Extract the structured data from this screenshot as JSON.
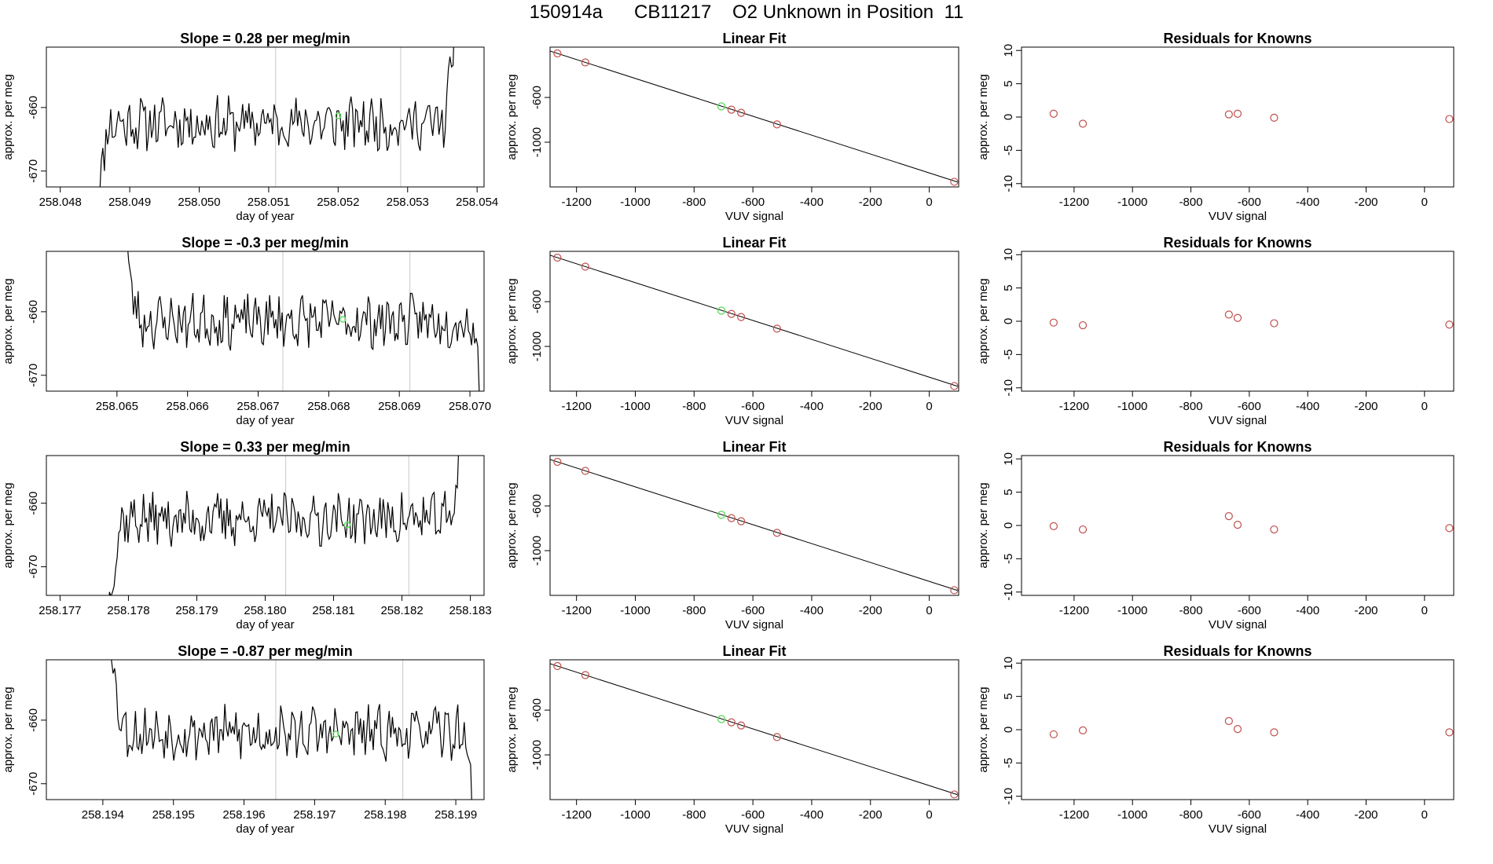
{
  "page": {
    "title": "150914a      CB11217    O2 Unknown in Position  11"
  },
  "style": {
    "trace_color": "#000000",
    "fit_color": "#000000",
    "known_point_color": "#c0504d",
    "unknown_point_color": "#66dd66",
    "guide_line_color": "#c8c8c8"
  },
  "chart_data": [
    {
      "type": "line",
      "title": "Slope =  0.28  per meg/min",
      "xlabel": "day of year",
      "ylabel": "approx. per meg",
      "xlim": [
        258.0478,
        258.0541
      ],
      "ylim": [
        -672.5,
        -650.5
      ],
      "xticks": [
        258.048,
        258.049,
        258.05,
        258.051,
        258.052,
        258.053,
        258.054
      ],
      "xtick_labels": [
        "258.048",
        "258.049",
        "258.050",
        "258.051",
        "258.052",
        "258.053",
        "258.054"
      ],
      "yticks": [
        -660,
        -670
      ],
      "ytick_labels": [
        "-660",
        "-670"
      ],
      "vlines": [
        258.0511,
        258.0529
      ],
      "start": 258.0485,
      "end": 258.0537,
      "level": -662.5,
      "lead": "up",
      "trail": "up",
      "unknown": {
        "x": 258.052,
        "y": -661.3
      },
      "seed": 11
    },
    {
      "type": "line",
      "title": "Slope =  -0.3  per meg/min",
      "xlabel": "day of year",
      "ylabel": "approx. per meg",
      "xlim": [
        258.064,
        258.0702
      ],
      "ylim": [
        -672.5,
        -650.5
      ],
      "xticks": [
        258.065,
        258.066,
        258.067,
        258.068,
        258.069,
        258.07
      ],
      "xtick_labels": [
        "258.065",
        "258.066",
        "258.067",
        "258.068",
        "258.069",
        "258.070"
      ],
      "yticks": [
        -660,
        -670
      ],
      "ytick_labels": [
        "-660",
        "-670"
      ],
      "vlines": [
        258.06735,
        258.06915
      ],
      "start": 258.0651,
      "end": 258.0702,
      "level": -661.5,
      "lead": "down",
      "trail": "down",
      "unknown": {
        "x": 258.0682,
        "y": -661.2
      },
      "seed": 23
    },
    {
      "type": "line",
      "title": "Slope =  0.33  per meg/min",
      "xlabel": "day of year",
      "ylabel": "approx. per meg",
      "xlim": [
        258.1768,
        258.1832
      ],
      "ylim": [
        -674.5,
        -652.5
      ],
      "xticks": [
        258.177,
        258.178,
        258.179,
        258.18,
        258.181,
        258.182,
        258.183
      ],
      "xtick_labels": [
        "258.177",
        "258.178",
        "258.179",
        "258.180",
        "258.181",
        "258.182",
        "258.183"
      ],
      "yticks": [
        -660,
        -670
      ],
      "ytick_labels": [
        "-660",
        "-670"
      ],
      "vlines": [
        258.1803,
        258.1821
      ],
      "start": 258.1777,
      "end": 258.1829,
      "level": -662.5,
      "lead": "up",
      "trail": "up",
      "unknown": {
        "x": 258.1812,
        "y": -663.4
      },
      "seed": 37
    },
    {
      "type": "line",
      "title": "Slope =  -0.87  per meg/min",
      "xlabel": "day of year",
      "ylabel": "approx. per meg",
      "xlim": [
        258.1932,
        258.1994
      ],
      "ylim": [
        -672.5,
        -650.5
      ],
      "xticks": [
        258.194,
        258.195,
        258.196,
        258.197,
        258.198,
        258.199
      ],
      "xtick_labels": [
        "258.194",
        "258.195",
        "258.196",
        "258.197",
        "258.198",
        "258.199"
      ],
      "yticks": [
        -660,
        -670
      ],
      "ytick_labels": [
        "-660",
        "-670"
      ],
      "vlines": [
        258.19645,
        258.19825
      ],
      "start": 258.1941,
      "end": 258.1993,
      "level": -662.0,
      "lead": "down",
      "trail": "down",
      "unknown": {
        "x": 258.1973,
        "y": -662.2
      },
      "seed": 53
    },
    {
      "type": "scatter",
      "title": "Linear Fit",
      "xlabel": "VUV signal",
      "ylabel": "approx. per meg",
      "xlim": [
        -1290,
        100
      ],
      "ylim": [
        -1400,
        -150
      ],
      "xticks": [
        -1200,
        -1000,
        -800,
        -600,
        -400,
        -200,
        0
      ],
      "xtick_labels": [
        "-1200",
        "-1000",
        "-800",
        "-600",
        "-400",
        "-200",
        "0"
      ],
      "yticks": [
        -600,
        -1000
      ],
      "ytick_labels": [
        "-600",
        "-1000"
      ],
      "fit": {
        "x": [
          -1290,
          95
        ],
        "y": [
          -185,
          -1355
        ]
      },
      "knowns": [
        {
          "x": -1265,
          "y": -206
        },
        {
          "x": -1170,
          "y": -287
        },
        {
          "x": -673,
          "y": -709
        },
        {
          "x": -640,
          "y": -737
        },
        {
          "x": -518,
          "y": -841
        },
        {
          "x": 85,
          "y": -1354
        }
      ],
      "unknown": {
        "x": -707,
        "y": -680
      }
    },
    {
      "type": "scatter",
      "title": "Linear Fit",
      "xlabel": "VUV signal",
      "ylabel": "approx. per meg",
      "xlim": [
        -1290,
        100
      ],
      "ylim": [
        -1400,
        -150
      ],
      "xticks": [
        -1200,
        -1000,
        -800,
        -600,
        -400,
        -200,
        0
      ],
      "xtick_labels": [
        "-1200",
        "-1000",
        "-800",
        "-600",
        "-400",
        "-200",
        "0"
      ],
      "yticks": [
        -600,
        -1000
      ],
      "ytick_labels": [
        "-600",
        "-1000"
      ],
      "fit": {
        "x": [
          -1290,
          95
        ],
        "y": [
          -185,
          -1355
        ]
      },
      "knowns": [
        {
          "x": -1265,
          "y": -206
        },
        {
          "x": -1170,
          "y": -287
        },
        {
          "x": -673,
          "y": -709
        },
        {
          "x": -640,
          "y": -737
        },
        {
          "x": -518,
          "y": -841
        },
        {
          "x": 85,
          "y": -1354
        }
      ],
      "unknown": {
        "x": -707,
        "y": -680
      }
    },
    {
      "type": "scatter",
      "title": "Linear Fit",
      "xlabel": "VUV signal",
      "ylabel": "approx. per meg",
      "xlim": [
        -1290,
        100
      ],
      "ylim": [
        -1400,
        -150
      ],
      "xticks": [
        -1200,
        -1000,
        -800,
        -600,
        -400,
        -200,
        0
      ],
      "xtick_labels": [
        "-1200",
        "-1000",
        "-800",
        "-600",
        "-400",
        "-200",
        "0"
      ],
      "yticks": [
        -600,
        -1000
      ],
      "ytick_labels": [
        "-600",
        "-1000"
      ],
      "fit": {
        "x": [
          -1290,
          95
        ],
        "y": [
          -185,
          -1355
        ]
      },
      "knowns": [
        {
          "x": -1265,
          "y": -206
        },
        {
          "x": -1170,
          "y": -287
        },
        {
          "x": -673,
          "y": -709
        },
        {
          "x": -640,
          "y": -737
        },
        {
          "x": -518,
          "y": -841
        },
        {
          "x": 85,
          "y": -1354
        }
      ],
      "unknown": {
        "x": -707,
        "y": -680
      }
    },
    {
      "type": "scatter",
      "title": "Linear Fit",
      "xlabel": "VUV signal",
      "ylabel": "approx. per meg",
      "xlim": [
        -1290,
        100
      ],
      "ylim": [
        -1400,
        -150
      ],
      "xticks": [
        -1200,
        -1000,
        -800,
        -600,
        -400,
        -200,
        0
      ],
      "xtick_labels": [
        "-1200",
        "-1000",
        "-800",
        "-600",
        "-400",
        "-200",
        "0"
      ],
      "yticks": [
        -600,
        -1000
      ],
      "ytick_labels": [
        "-600",
        "-1000"
      ],
      "fit": {
        "x": [
          -1290,
          95
        ],
        "y": [
          -185,
          -1355
        ]
      },
      "knowns": [
        {
          "x": -1265,
          "y": -206
        },
        {
          "x": -1170,
          "y": -287
        },
        {
          "x": -673,
          "y": -709
        },
        {
          "x": -640,
          "y": -737
        },
        {
          "x": -518,
          "y": -841
        },
        {
          "x": 85,
          "y": -1354
        }
      ],
      "unknown": {
        "x": -707,
        "y": -680
      }
    },
    {
      "type": "scatter",
      "title": "Residuals for Knowns",
      "xlabel": "VUV signal",
      "ylabel": "approx. per meg",
      "xlim": [
        -1380,
        100
      ],
      "ylim": [
        -10.5,
        10.5
      ],
      "xticks": [
        -1200,
        -1000,
        -800,
        -600,
        -400,
        -200,
        0
      ],
      "xtick_labels": [
        "-1200",
        "-1000",
        "-800",
        "-600",
        "-400",
        "-200",
        "0"
      ],
      "yticks": [
        10,
        5,
        0,
        -5,
        -10
      ],
      "ytick_labels": [
        "10",
        "5",
        "0",
        "-5",
        "-10"
      ],
      "points": [
        {
          "x": -1270,
          "y": 0.5
        },
        {
          "x": -1170,
          "y": -1.0
        },
        {
          "x": -670,
          "y": 0.4
        },
        {
          "x": -640,
          "y": 0.5
        },
        {
          "x": -515,
          "y": -0.1
        },
        {
          "x": 85,
          "y": -0.3
        }
      ]
    },
    {
      "type": "scatter",
      "title": "Residuals for Knowns",
      "xlabel": "VUV signal",
      "ylabel": "approx. per meg",
      "xlim": [
        -1380,
        100
      ],
      "ylim": [
        -10.5,
        10.5
      ],
      "xticks": [
        -1200,
        -1000,
        -800,
        -600,
        -400,
        -200,
        0
      ],
      "xtick_labels": [
        "-1200",
        "-1000",
        "-800",
        "-600",
        "-400",
        "-200",
        "0"
      ],
      "yticks": [
        10,
        5,
        0,
        -5,
        -10
      ],
      "ytick_labels": [
        "10",
        "5",
        "0",
        "-5",
        "-10"
      ],
      "points": [
        {
          "x": -1270,
          "y": -0.2
        },
        {
          "x": -1170,
          "y": -0.6
        },
        {
          "x": -670,
          "y": 1.0
        },
        {
          "x": -640,
          "y": 0.5
        },
        {
          "x": -515,
          "y": -0.3
        },
        {
          "x": 85,
          "y": -0.5
        }
      ]
    },
    {
      "type": "scatter",
      "title": "Residuals for Knowns",
      "xlabel": "VUV signal",
      "ylabel": "approx. per meg",
      "xlim": [
        -1380,
        100
      ],
      "ylim": [
        -10.5,
        10.5
      ],
      "xticks": [
        -1200,
        -1000,
        -800,
        -600,
        -400,
        -200,
        0
      ],
      "xtick_labels": [
        "-1200",
        "-1000",
        "-800",
        "-600",
        "-400",
        "-200",
        "0"
      ],
      "yticks": [
        10,
        5,
        0,
        -5,
        -10
      ],
      "ytick_labels": [
        "10",
        "5",
        "0",
        "-5",
        "-10"
      ],
      "points": [
        {
          "x": -1270,
          "y": -0.1
        },
        {
          "x": -1170,
          "y": -0.6
        },
        {
          "x": -670,
          "y": 1.4
        },
        {
          "x": -640,
          "y": 0.1
        },
        {
          "x": -515,
          "y": -0.6
        },
        {
          "x": 85,
          "y": -0.4
        }
      ]
    },
    {
      "type": "scatter",
      "title": "Residuals for Knowns",
      "xlabel": "VUV signal",
      "ylabel": "approx. per meg",
      "xlim": [
        -1380,
        100
      ],
      "ylim": [
        -10.5,
        10.5
      ],
      "xticks": [
        -1200,
        -1000,
        -800,
        -600,
        -400,
        -200,
        0
      ],
      "xtick_labels": [
        "-1200",
        "-1000",
        "-800",
        "-600",
        "-400",
        "-200",
        "0"
      ],
      "yticks": [
        10,
        5,
        0,
        -5,
        -10
      ],
      "ytick_labels": [
        "10",
        "5",
        "0",
        "-5",
        "-10"
      ],
      "points": [
        {
          "x": -1270,
          "y": -0.7
        },
        {
          "x": -1170,
          "y": -0.1
        },
        {
          "x": -670,
          "y": 1.3
        },
        {
          "x": -640,
          "y": 0.1
        },
        {
          "x": -515,
          "y": -0.4
        },
        {
          "x": 85,
          "y": -0.4
        }
      ]
    }
  ]
}
